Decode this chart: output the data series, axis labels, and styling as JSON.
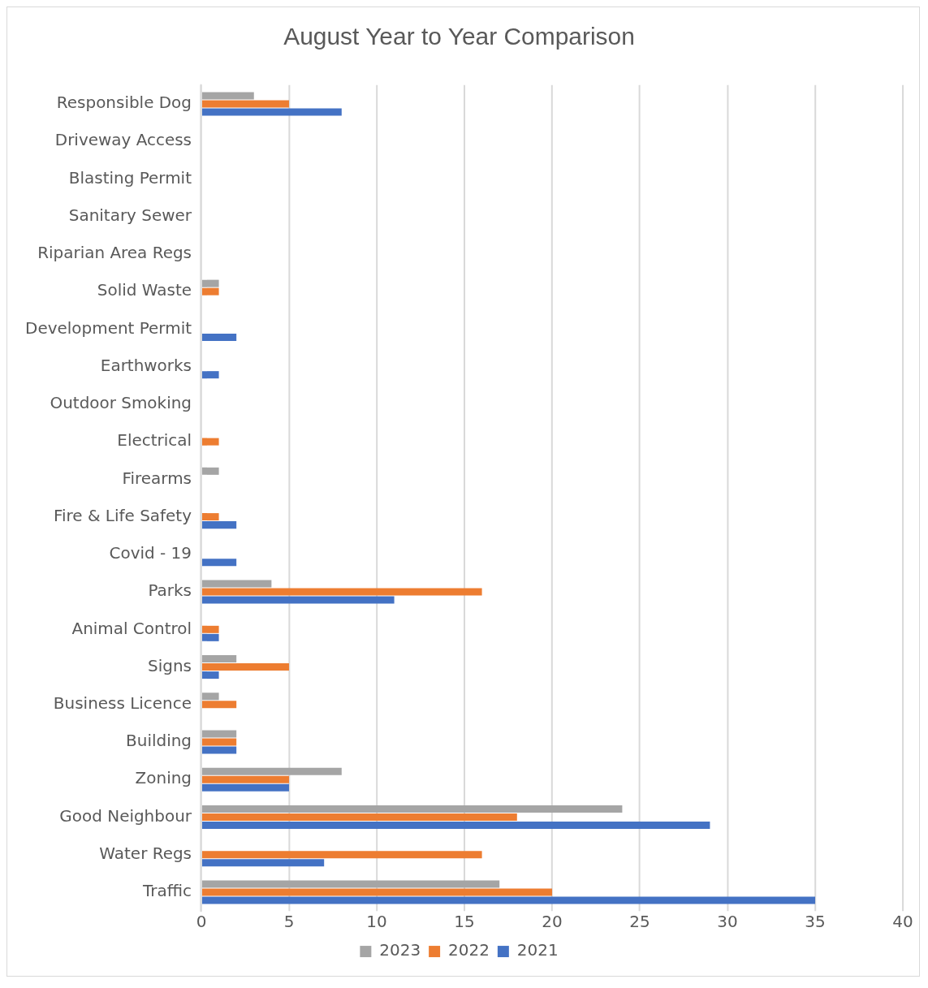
{
  "chart_data": {
    "type": "bar",
    "orientation": "horizontal",
    "title": "August Year to Year Comparison",
    "categories": [
      "Responsible Dog",
      "Driveway Access",
      "Blasting Permit",
      "Sanitary Sewer",
      "Riparian Area Regs",
      "Solid Waste",
      "Development Permit",
      "Earthworks",
      "Outdoor Smoking",
      "Electrical",
      "Firearms",
      "Fire & Life Safety",
      "Covid - 19",
      "Parks",
      "Animal Control",
      "Signs",
      "Business Licence",
      "Building",
      "Zoning",
      "Good Neighbour",
      "Water Regs",
      "Traffic"
    ],
    "series": [
      {
        "name": "2023",
        "color": "#a5a5a5",
        "values": [
          3,
          0,
          0,
          0,
          0,
          1,
          0,
          0,
          0,
          0,
          1,
          0,
          0,
          4,
          0,
          2,
          1,
          2,
          8,
          24,
          0,
          17
        ]
      },
      {
        "name": "2022",
        "color": "#ed7d31",
        "values": [
          5,
          0,
          0,
          0,
          0,
          1,
          0,
          0,
          0,
          1,
          0,
          1,
          0,
          16,
          1,
          5,
          2,
          2,
          5,
          18,
          16,
          20
        ]
      },
      {
        "name": "2021",
        "color": "#4472c4",
        "values": [
          8,
          0,
          0,
          0,
          0,
          0,
          2,
          1,
          0,
          0,
          0,
          2,
          2,
          11,
          1,
          1,
          0,
          2,
          5,
          29,
          7,
          35
        ]
      }
    ],
    "xlim": [
      0,
      40
    ],
    "xticks": [
      0,
      5,
      10,
      15,
      20,
      25,
      30,
      35,
      40
    ],
    "grid": "x",
    "legend": "bottom"
  }
}
